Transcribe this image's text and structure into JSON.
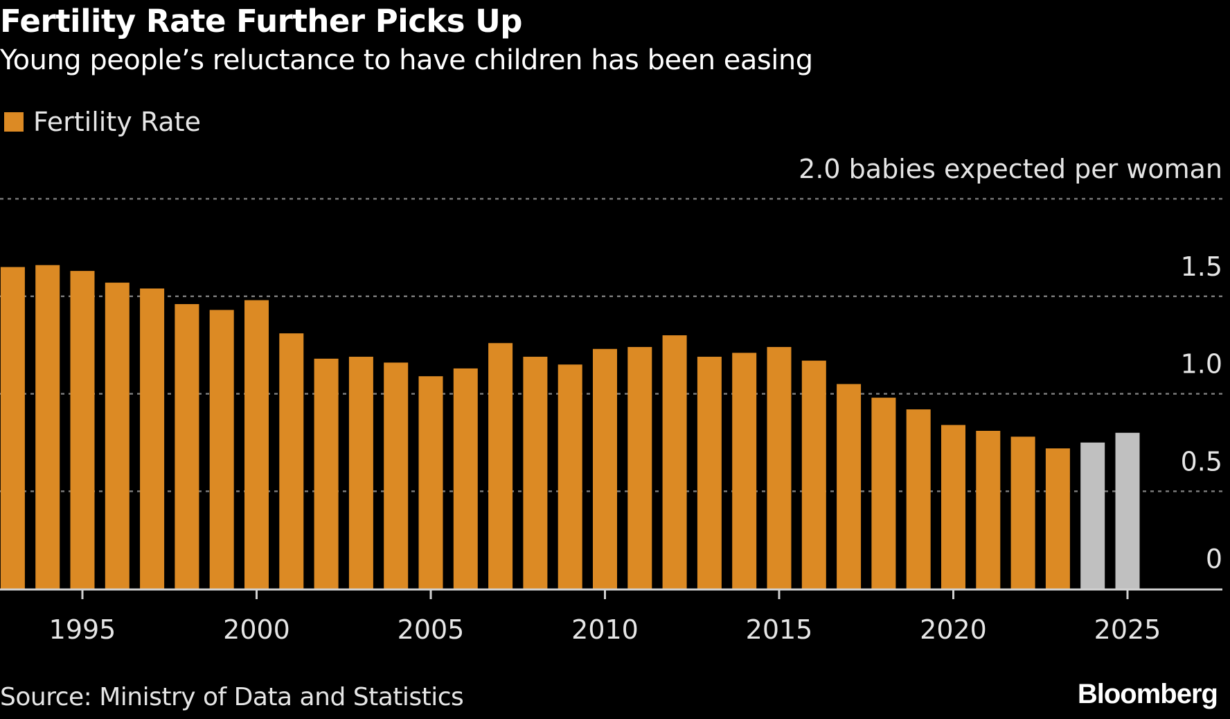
{
  "title": "Fertility Rate Further Picks Up",
  "subtitle": "Young people’s reluctance to have children has been easing",
  "source": "Source: Ministry of Data and Statistics",
  "brand": "Bloomberg",
  "colors": {
    "actual": "#DC8A24",
    "estimate": "#C0C0C0",
    "background": "#000000"
  },
  "chart_data": {
    "type": "bar",
    "title": "Fertility Rate Further Picks Up",
    "subtitle": "Young people’s reluctance to have children has been easing",
    "legend": [
      {
        "name": "Fertility Rate",
        "color": "#DC8A24"
      }
    ],
    "legend_position": "top-left",
    "y_axis_label": "babies expected per woman",
    "top_tick_label": "2.0 babies expected per woman",
    "ylim": [
      0,
      2.0
    ],
    "y_ticks": [
      {
        "value": 0,
        "label": "0"
      },
      {
        "value": 0.5,
        "label": "0.5"
      },
      {
        "value": 1.0,
        "label": "1.0"
      },
      {
        "value": 1.5,
        "label": "1.5"
      }
    ],
    "x_ticks": [
      1995,
      2000,
      2005,
      2010,
      2015,
      2020,
      2025
    ],
    "xlim": [
      1993,
      2027.5
    ],
    "grid": "horizontal dotted",
    "categories": [
      1993,
      1994,
      1995,
      1996,
      1997,
      1998,
      1999,
      2000,
      2001,
      2002,
      2003,
      2004,
      2005,
      2006,
      2007,
      2008,
      2009,
      2010,
      2011,
      2012,
      2013,
      2014,
      2015,
      2016,
      2017,
      2018,
      2019,
      2020,
      2021,
      2022,
      2023,
      2024,
      2025
    ],
    "series": [
      {
        "name": "Fertility Rate",
        "values": [
          1.65,
          1.66,
          1.63,
          1.57,
          1.54,
          1.46,
          1.43,
          1.48,
          1.31,
          1.18,
          1.19,
          1.16,
          1.09,
          1.13,
          1.26,
          1.19,
          1.15,
          1.23,
          1.24,
          1.3,
          1.19,
          1.21,
          1.24,
          1.17,
          1.05,
          0.98,
          0.92,
          0.84,
          0.81,
          0.78,
          0.72,
          0.75,
          0.8
        ],
        "estimate_from": 2024
      }
    ]
  }
}
